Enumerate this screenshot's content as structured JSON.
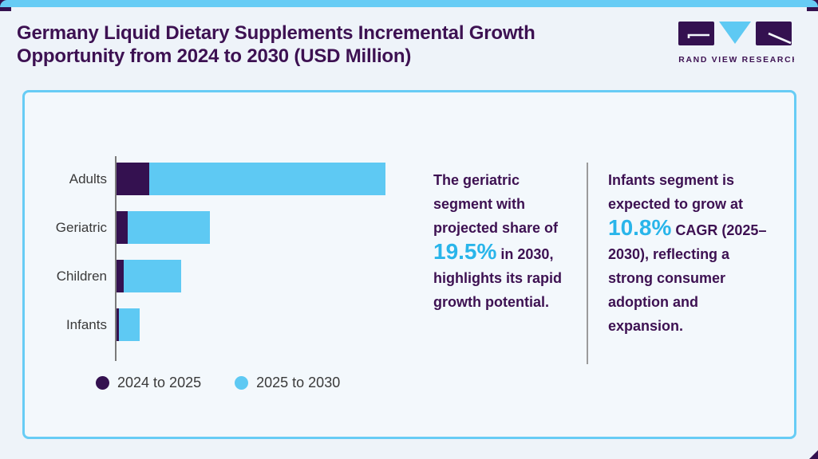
{
  "page": {
    "title": "Germany Liquid Dietary Supplements Incremental Growth Opportunity from 2024 to 2030 (USD Million)"
  },
  "logo": {
    "name": "GRAND VIEW RESEARCH"
  },
  "colors": {
    "page_bg": "#eef3f9",
    "card_bg": "#f3f8fc",
    "card_border": "#67ccf5",
    "accent_bar_blue": "#67ccf5",
    "title_purple": "#3d1152",
    "bar_purple": "#341150",
    "bar_blue": "#5ec9f3",
    "stat_blue": "#29b5ea",
    "label_gray": "#3a3a3a",
    "axis_gray": "#7a7a7a",
    "divider_gray": "#9b9b9b"
  },
  "chart_data": {
    "type": "bar",
    "orientation": "horizontal",
    "stacked": true,
    "title": "Germany Liquid Dietary Supplements Incremental Growth Opportunity from 2024 to 2030 (USD Million)",
    "categories": [
      "Adults",
      "Geriatric",
      "Children",
      "Infants"
    ],
    "series": [
      {
        "name": "2024 to 2025",
        "color": "#341150",
        "relative_values": [
          41,
          14,
          9,
          3
        ]
      },
      {
        "name": "2025 to 2030",
        "color": "#5ec9f3",
        "relative_values": [
          296,
          103,
          72,
          26
        ]
      }
    ],
    "value_axis_visible": false,
    "note": "No numeric axis or data labels shown; values are relative stacked bar lengths estimated from pixels",
    "legend_position": "bottom",
    "grid": false
  },
  "insights": {
    "left": {
      "segments": [
        {
          "text": "The geriatric segment with projected share of ",
          "style": "body"
        },
        {
          "text": "19.5%",
          "style": "stat"
        },
        {
          "text": " in 2030, highlights its rapid growth potential.",
          "style": "body"
        }
      ]
    },
    "right": {
      "segments": [
        {
          "text": "Infants segment is expected to grow at ",
          "style": "body"
        },
        {
          "text": "10.8%",
          "style": "stat"
        },
        {
          "text": " CAGR (2025–2030), reflecting a strong consumer adoption and expansion.",
          "style": "body"
        }
      ]
    }
  }
}
